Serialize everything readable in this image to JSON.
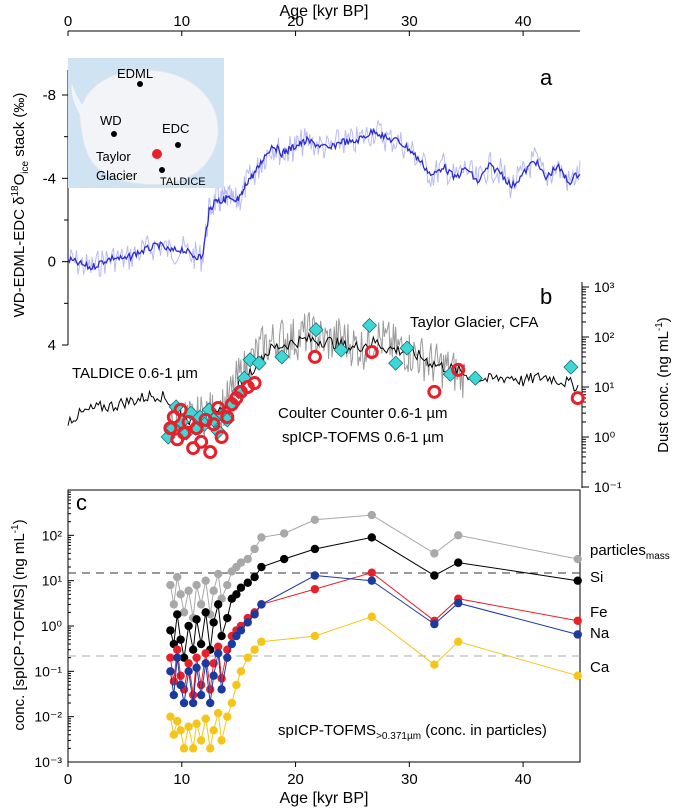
{
  "colors": {
    "d18o_line": "#2b2bd0",
    "d18o_raw": "#b9bcf2",
    "cfa": "#9a9a9a",
    "taldice": "#000000",
    "coulter": "#3fd6d6",
    "spicp": "#e8202a",
    "particles": "#a8a8a8",
    "si": "#000000",
    "fe": "#e8202a",
    "na": "#1a3aa0",
    "ca": "#f5c518",
    "ocean": "#cfe3f2",
    "ice": "#f2f4f8",
    "axis": "#000000"
  },
  "top_axis": {
    "label": "Age [kyr BP]",
    "ticks": [
      0,
      10,
      20,
      30,
      40
    ]
  },
  "panel_a": {
    "letter": "a",
    "ylabel_html": "WD-EDML-EDC δ¹⁸O_ice stack (‰)",
    "ylabel_main": "WD-EDML-EDC δ",
    "ylabel_sup": "18",
    "ylabel_o": "O",
    "ylabel_sub": "ice",
    "ylabel_end": " stack (‰)",
    "yticks": [
      "-8",
      "-4",
      "0",
      "4"
    ],
    "map": {
      "sites": [
        "EDML",
        "WD",
        "EDC",
        "Taylor Glacier",
        "TALDICE"
      ],
      "edml": "EDML",
      "wd": "WD",
      "edc": "EDC",
      "taylor1": "Taylor",
      "taylor2": "Glacier",
      "taldice": "TALDICE"
    }
  },
  "panel_b": {
    "letter": "b",
    "ylabel": "Dust conc. (ng mL⁻¹)",
    "ylabel_main": "Dust conc. (ng mL",
    "ylabel_sup": "-1",
    "ylabel_end": ")",
    "yticks": [
      "10³",
      "10²",
      "10¹",
      "10⁰",
      "10⁻¹"
    ],
    "legend": {
      "cfa": "Taylor Glacier, CFA",
      "taldice": "TALDICE 0.6-1 µm",
      "coulter": "Coulter Counter 0.6-1 µm",
      "spicp": "spICP-TOFMS 0.6-1 µm"
    }
  },
  "panel_c": {
    "letter": "c",
    "ylabel_main": "conc. [spICP-TOFMS] (ng mL",
    "ylabel_sup": "-1",
    "ylabel_end": ")",
    "yticks": [
      "10²",
      "10¹",
      "10⁰",
      "10⁻¹",
      "10⁻²",
      "10⁻³"
    ],
    "xlabel": "Age [kyr BP]",
    "xticks": [
      "0",
      "10",
      "20",
      "30",
      "40"
    ],
    "series_labels": {
      "particles": "particles",
      "particles_sub": "mass",
      "si": "Si",
      "fe": "Fe",
      "na": "Na",
      "ca": "Ca"
    },
    "note_main": "spICP-TOFMS",
    "note_sub": ">0.371µm",
    "note_end": " (conc. in particles)"
  },
  "chart_data": [
    {
      "type": "line",
      "panel": "a",
      "xlabel": "Age [kyr BP]",
      "ylabel": "WD-EDML-EDC δ18Oice stack (‰)",
      "xlim": [
        0,
        45
      ],
      "ylim": [
        4,
        -10
      ],
      "y_inverted": true,
      "series": [
        {
          "x": [
            0,
            1,
            2,
            3,
            4,
            5,
            6,
            7,
            8,
            9,
            10,
            11,
            11.8,
            12.4,
            13,
            13.5,
            14,
            14.6,
            15.2,
            15.8,
            16.5,
            17.2,
            18,
            18.8,
            19.5,
            20.2,
            21,
            22,
            23,
            24,
            25,
            26,
            27,
            28,
            29,
            30,
            31,
            32,
            33,
            34,
            35,
            36,
            37,
            38,
            39,
            40,
            41,
            42,
            43,
            44,
            45
          ],
          "y": [
            -0.1,
            0.1,
            0.3,
            0.0,
            -0.2,
            -0.1,
            -0.4,
            -0.6,
            -0.8,
            -0.5,
            -0.6,
            -0.3,
            -0.2,
            -2.4,
            -3.0,
            -2.9,
            -3.1,
            -2.8,
            -3.1,
            -3.9,
            -4.3,
            -5.0,
            -5.6,
            -5.2,
            -5.4,
            -5.6,
            -5.8,
            -5.6,
            -5.4,
            -5.8,
            -5.7,
            -6.0,
            -6.3,
            -5.9,
            -5.8,
            -5.4,
            -4.8,
            -4.1,
            -4.6,
            -4.0,
            -4.5,
            -3.8,
            -4.6,
            -4.3,
            -3.6,
            -4.2,
            -4.9,
            -4.0,
            -4.6,
            -3.8,
            -4.3
          ]
        }
      ]
    },
    {
      "type": "scatter",
      "panel": "b",
      "xlabel": "Age [kyr BP]",
      "ylabel": "Dust conc. (ng mL-1)",
      "y_scale": "log",
      "xlim": [
        0,
        45
      ],
      "ylim": [
        0.1,
        1000
      ],
      "series": [
        {
          "name": "TALDICE 0.6-1 µm",
          "kind": "line",
          "x": [
            0,
            1,
            2,
            3,
            4,
            5,
            6,
            7,
            8,
            9,
            10,
            11,
            12,
            13,
            14,
            15,
            16,
            17,
            18,
            19,
            20,
            21,
            22,
            23,
            24,
            25,
            26,
            27,
            28,
            29,
            30,
            31,
            32,
            33,
            34,
            35,
            36,
            37,
            38,
            39,
            40,
            41,
            42,
            43,
            44,
            45
          ],
          "y": [
            2.2,
            2.8,
            3.5,
            4.0,
            4.2,
            5.0,
            5.5,
            6.5,
            7.0,
            5.0,
            3.0,
            2.0,
            1.8,
            2.5,
            4.5,
            10,
            20,
            40,
            60,
            70,
            80,
            90,
            85,
            80,
            70,
            60,
            70,
            80,
            60,
            55,
            50,
            40,
            30,
            25,
            22,
            18,
            15,
            14,
            15,
            16,
            13,
            15,
            16,
            14,
            12,
            10
          ]
        },
        {
          "name": "Taylor Glacier, CFA",
          "kind": "line",
          "x": [
            9,
            10,
            11,
            12,
            13,
            14,
            15,
            16,
            17,
            18,
            19,
            20,
            21,
            22,
            23,
            24,
            25,
            26,
            27,
            28,
            29,
            30,
            31,
            32,
            33,
            34,
            35
          ],
          "y": [
            2.0,
            2.5,
            2.0,
            3.0,
            3.0,
            5.0,
            15,
            30,
            60,
            80,
            100,
            90,
            120,
            100,
            80,
            100,
            70,
            60,
            100,
            80,
            60,
            50,
            40,
            30,
            25,
            20,
            15
          ]
        },
        {
          "name": "Coulter Counter 0.6-1 µm",
          "kind": "marker",
          "x": [
            8.8,
            9.2,
            9.5,
            10.0,
            10.4,
            10.8,
            11.2,
            11.6,
            12.0,
            12.4,
            12.8,
            13.2,
            13.6,
            14.0,
            14.5,
            15.0,
            15.5,
            16.0,
            16.8,
            18.8,
            21.8,
            24.0,
            26.5,
            28.8,
            29.8,
            33.6,
            35.8,
            44.2
          ],
          "y": [
            1.0,
            1.5,
            4.0,
            2.0,
            1.2,
            3.0,
            1.5,
            2.5,
            1.8,
            3.5,
            2.2,
            1.3,
            2.8,
            2.2,
            4.5,
            8.0,
            15,
            35,
            30,
            40,
            140,
            55,
            170,
            30,
            60,
            18,
            15,
            25
          ]
        },
        {
          "name": "spICP-TOFMS 0.6-1 µm",
          "kind": "marker",
          "x": [
            9.0,
            9.3,
            9.6,
            9.9,
            10.2,
            10.6,
            11.0,
            11.3,
            11.7,
            12.1,
            12.5,
            12.8,
            13.2,
            13.5,
            14.0,
            14.4,
            14.8,
            15.2,
            15.8,
            16.4,
            21.7,
            26.7,
            32.2,
            34.3,
            44.8
          ],
          "y": [
            1.5,
            2.5,
            0.9,
            3.5,
            1.2,
            2.0,
            0.6,
            1.5,
            0.8,
            2.2,
            0.5,
            1.8,
            3.8,
            1.0,
            2.5,
            4.5,
            6.0,
            8.0,
            10,
            12,
            40,
            50,
            8,
            22,
            6
          ]
        }
      ]
    },
    {
      "type": "line",
      "panel": "c",
      "xlabel": "Age [kyr BP]",
      "ylabel": "conc. [spICP-TOFMS] (ng mL-1)",
      "y_scale": "log",
      "xlim": [
        0,
        45
      ],
      "ylim": [
        0.001,
        1000
      ],
      "series": [
        {
          "name": "particles mass",
          "x": [
            9.0,
            9.3,
            9.6,
            9.9,
            10.2,
            10.6,
            11.0,
            11.3,
            11.7,
            12.1,
            12.5,
            12.8,
            13.2,
            13.5,
            14.0,
            14.4,
            14.8,
            15.2,
            15.8,
            16.4,
            17.0,
            19.0,
            21.7,
            26.7,
            32.2,
            34.3,
            44.8
          ],
          "y": [
            8.0,
            3.0,
            12,
            5.0,
            2.0,
            6.0,
            1.5,
            8.0,
            3.0,
            10,
            1.8,
            6.0,
            14,
            4.0,
            8.0,
            16,
            20,
            25,
            30,
            50,
            90,
            110,
            220,
            280,
            40,
            100,
            30
          ]
        },
        {
          "name": "Si",
          "x": [
            9.0,
            9.3,
            9.6,
            9.9,
            10.2,
            10.6,
            11.0,
            11.3,
            11.7,
            12.1,
            12.5,
            12.8,
            13.2,
            13.5,
            14.0,
            14.4,
            14.8,
            15.2,
            15.8,
            16.4,
            17.0,
            19.0,
            21.7,
            26.7,
            32.2,
            34.3,
            44.8
          ],
          "y": [
            0.8,
            0.4,
            1.8,
            0.5,
            0.2,
            1.0,
            0.3,
            1.4,
            0.4,
            2.0,
            0.3,
            1.2,
            3.0,
            0.6,
            1.5,
            4.0,
            5.0,
            7.0,
            9.0,
            12,
            20,
            30,
            50,
            90,
            13,
            25,
            10
          ]
        },
        {
          "name": "Fe",
          "x": [
            9.0,
            9.3,
            9.6,
            9.9,
            10.2,
            10.6,
            11.0,
            11.3,
            11.7,
            12.1,
            12.5,
            12.8,
            13.2,
            13.5,
            14.0,
            14.4,
            14.8,
            15.2,
            15.8,
            16.4,
            17.0,
            21.7,
            26.7,
            32.2,
            34.3,
            44.8
          ],
          "y": [
            0.2,
            0.06,
            0.3,
            0.08,
            0.04,
            0.15,
            0.03,
            0.2,
            0.05,
            0.25,
            0.04,
            0.15,
            0.35,
            0.07,
            0.3,
            0.6,
            0.8,
            1.0,
            1.5,
            2.0,
            3.0,
            6.5,
            15,
            1.3,
            4.0,
            1.3
          ]
        },
        {
          "name": "Na",
          "x": [
            9.0,
            9.3,
            9.6,
            9.9,
            10.2,
            10.6,
            11.0,
            11.3,
            11.7,
            12.1,
            12.5,
            12.8,
            13.2,
            13.5,
            14.0,
            14.4,
            14.8,
            15.2,
            15.8,
            16.4,
            17.0,
            21.7,
            26.7,
            32.2,
            34.3,
            44.8
          ],
          "y": [
            0.1,
            0.03,
            0.2,
            0.05,
            0.02,
            0.1,
            0.02,
            0.12,
            0.03,
            0.15,
            0.02,
            0.08,
            0.25,
            0.04,
            0.2,
            0.4,
            0.6,
            0.8,
            1.2,
            1.8,
            3.0,
            13,
            10,
            1.1,
            3.2,
            0.65
          ]
        },
        {
          "name": "Ca",
          "x": [
            9.0,
            9.3,
            9.6,
            9.9,
            10.2,
            10.6,
            11.0,
            11.3,
            11.7,
            12.1,
            12.5,
            12.8,
            13.2,
            13.5,
            14.0,
            14.4,
            14.8,
            15.2,
            15.8,
            16.4,
            17.0,
            21.7,
            26.7,
            32.2,
            34.3,
            44.8
          ],
          "y": [
            0.01,
            0.004,
            0.008,
            0.005,
            0.002,
            0.006,
            0.002,
            0.007,
            0.003,
            0.009,
            0.002,
            0.005,
            0.012,
            0.003,
            0.01,
            0.02,
            0.05,
            0.1,
            0.2,
            0.3,
            0.45,
            0.6,
            1.6,
            0.14,
            0.45,
            0.08
          ]
        }
      ]
    }
  ]
}
